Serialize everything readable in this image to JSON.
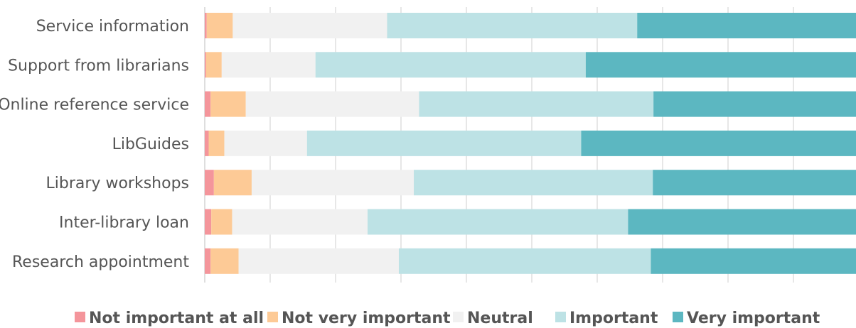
{
  "chart_data": {
    "type": "bar",
    "orientation": "horizontal",
    "stacked": true,
    "normalized": true,
    "xlim": [
      0,
      100
    ],
    "grid": "vertical",
    "legend_position": "bottom",
    "categories": [
      "Service information",
      "Support from librarians",
      "Online reference service",
      "LibGuides",
      "Library workshops",
      "Inter-library loan",
      "Research appointment"
    ],
    "series": [
      {
        "name": "Not important at all",
        "color": "#f4959b",
        "values": [
          0.3,
          0.2,
          0.9,
          0.6,
          1.4,
          1.0,
          0.9
        ]
      },
      {
        "name": "Not very important",
        "color": "#fdca96",
        "values": [
          4.0,
          2.4,
          5.4,
          2.4,
          5.8,
          3.2,
          4.3
        ]
      },
      {
        "name": "Neutral",
        "color": "#f1f1f1",
        "values": [
          23.7,
          14.4,
          26.6,
          12.7,
          24.9,
          20.8,
          24.6
        ]
      },
      {
        "name": "Important",
        "color": "#bde2e5",
        "values": [
          38.4,
          41.5,
          36.0,
          42.1,
          36.7,
          40.0,
          38.7
        ]
      },
      {
        "name": "Very important",
        "color": "#5cb7c1",
        "values": [
          33.6,
          41.5,
          31.1,
          42.2,
          31.2,
          35.0,
          31.5
        ]
      }
    ]
  }
}
